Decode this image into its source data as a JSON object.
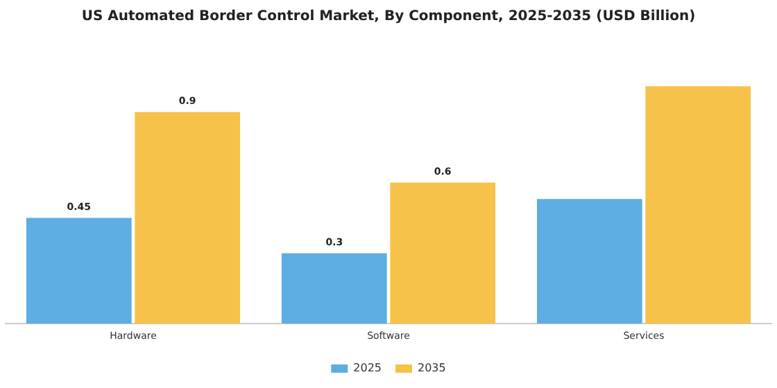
{
  "chart_data": {
    "type": "bar",
    "title": "US Automated Border Control Market, By Component, 2025-2035 (USD Billion)",
    "categories": [
      "Hardware",
      "Software",
      "Services"
    ],
    "series": [
      {
        "name": "2025",
        "color": "#5dade2",
        "values": [
          0.45,
          0.3,
          0.53
        ],
        "value_labels": [
          "0.45",
          "0.3",
          null
        ]
      },
      {
        "name": "2035",
        "color": "#f7c24a",
        "values": [
          0.9,
          0.6,
          1.01
        ],
        "value_labels": [
          "0.9",
          "0.6",
          null
        ]
      }
    ],
    "legend": "bottom",
    "grid": false
  }
}
